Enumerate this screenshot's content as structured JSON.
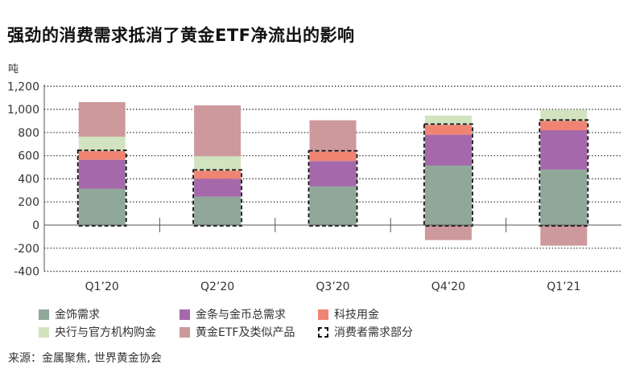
{
  "title": "强劲的消费需求抵消了黄金ETF净流出的影响",
  "source": "来源：金属聚焦, 世界黄金协会",
  "chart_data": {
    "type": "bar",
    "stacked": true,
    "ylabel": "吨",
    "ylim": [
      -400,
      1200
    ],
    "yticks": [
      -400,
      -200,
      0,
      200,
      400,
      600,
      800,
      1000,
      1200
    ],
    "ytick_labels": [
      "-400",
      "-200",
      "0",
      "200",
      "400",
      "600",
      "800",
      "1,000",
      "1,200"
    ],
    "grid": "horizontal dotted",
    "legend_position": "bottom",
    "categories": [
      "Q1’20",
      "Q2’20",
      "Q3’20",
      "Q4’20",
      "Q1’21"
    ],
    "series": [
      {
        "name": "金饰需求",
        "color": "#8fa89a",
        "values": [
          313,
          245,
          334,
          514,
          480
        ]
      },
      {
        "name": "金条与金币总需求",
        "color": "#a569ab",
        "values": [
          252,
          156,
          220,
          267,
          340
        ]
      },
      {
        "name": "科技用金",
        "color": "#f08473",
        "values": [
          74,
          69,
          81,
          85,
          81
        ]
      },
      {
        "name": "央行与官方机构购金",
        "color": "#d2e3c0",
        "values": [
          125,
          125,
          0,
          81,
          95
        ]
      },
      {
        "name": "黄金ETF及类似产品",
        "color": "#cd999c",
        "values": [
          299,
          440,
          271,
          -130,
          -178
        ]
      }
    ],
    "consumer_box": {
      "name": "消费者需求部分",
      "style": "dashed",
      "color": "#111111",
      "series_included": [
        "金饰需求",
        "金条与金币总需求",
        "科技用金"
      ]
    }
  }
}
